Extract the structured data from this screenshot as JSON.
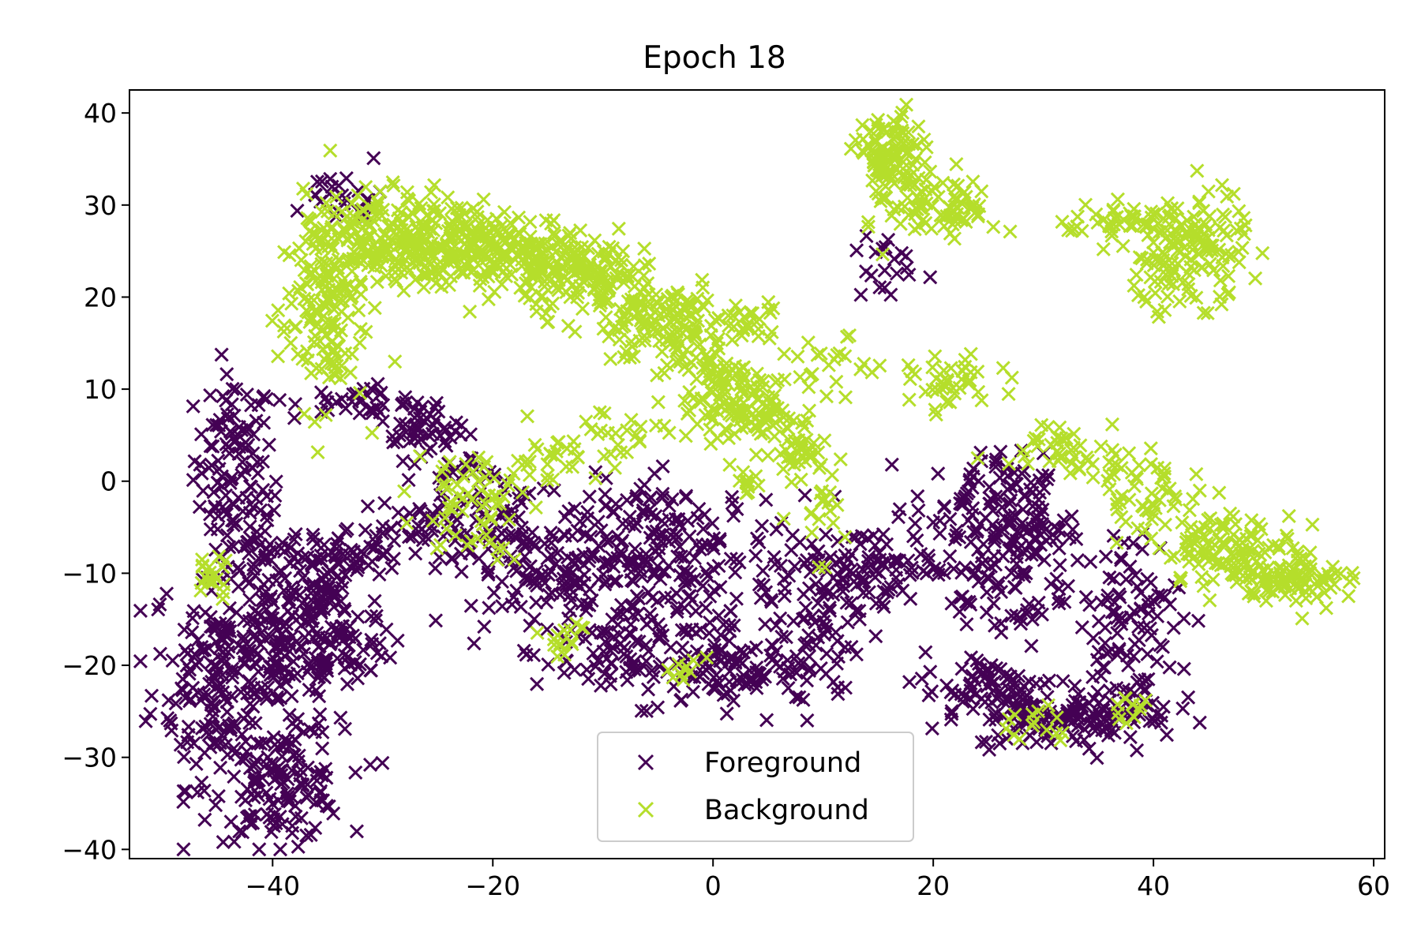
{
  "chart_data": {
    "type": "scatter",
    "title": "Epoch 18",
    "xlabel": "",
    "ylabel": "",
    "xlim": [
      -53,
      61
    ],
    "ylim": [
      -41,
      42.5
    ],
    "xticks": [
      -40,
      -20,
      0,
      20,
      40,
      60
    ],
    "yticks": [
      -40,
      -30,
      -20,
      -10,
      0,
      10,
      20,
      30,
      40
    ],
    "xtick_labels": [
      "−40",
      "−20",
      "0",
      "20",
      "40",
      "60"
    ],
    "ytick_labels": [
      "−40",
      "−30",
      "−20",
      "−10",
      "0",
      "10",
      "20",
      "30",
      "40"
    ],
    "grid": false,
    "legend_position": "bottom-center",
    "marker": "x",
    "series": [
      {
        "name": "Foreground",
        "color": "#440154",
        "clusters": [
          {
            "center": [
              -43.5,
              2.5
            ],
            "spread": [
              1.8,
              4.5
            ],
            "count": 90
          },
          {
            "center": [
              -42.5,
              -6.0
            ],
            "spread": [
              1.8,
              3.0
            ],
            "count": 40
          },
          {
            "center": [
              -45.0,
              -21.0
            ],
            "spread": [
              3.0,
              6.0
            ],
            "count": 160
          },
          {
            "center": [
              -39.0,
              -18.0
            ],
            "spread": [
              3.5,
              5.0
            ],
            "count": 170
          },
          {
            "center": [
              -39.5,
              -33.0
            ],
            "spread": [
              3.0,
              3.0
            ],
            "count": 130
          },
          {
            "center": [
              -35.0,
              -13.0
            ],
            "spread": [
              2.5,
              5.0
            ],
            "count": 80
          },
          {
            "center": [
              -33.0,
              -8.0
            ],
            "spread": [
              2.5,
              1.5
            ],
            "count": 40
          },
          {
            "center": [
              -33.0,
              -18.5
            ],
            "spread": [
              2.0,
              1.5
            ],
            "count": 30
          },
          {
            "center": [
              -27.0,
              -5.0
            ],
            "spread": [
              3.5,
              1.5
            ],
            "count": 40
          },
          {
            "center": [
              -20.0,
              -3.0
            ],
            "spread": [
              2.5,
              2.0
            ],
            "count": 30
          },
          {
            "center": [
              -14.0,
              -10.0
            ],
            "spread": [
              5.0,
              4.0
            ],
            "count": 180
          },
          {
            "center": [
              -3.5,
              -8.0
            ],
            "spread": [
              4.5,
              4.0
            ],
            "count": 160
          },
          {
            "center": [
              -6.0,
              -19.0
            ],
            "spread": [
              5.0,
              2.5
            ],
            "count": 80
          },
          {
            "center": [
              3.0,
              -21.0
            ],
            "spread": [
              5.0,
              2.0
            ],
            "count": 100
          },
          {
            "center": [
              10.0,
              -12.0
            ],
            "spread": [
              3.5,
              4.0
            ],
            "count": 100
          },
          {
            "center": [
              15.0,
              -9.0
            ],
            "spread": [
              4.0,
              2.0
            ],
            "count": 60
          },
          {
            "center": [
              24.0,
              -3.0
            ],
            "spread": [
              3.0,
              3.0
            ],
            "count": 90
          },
          {
            "center": [
              28.5,
              -5.0
            ],
            "spread": [
              2.0,
              3.0
            ],
            "count": 60
          },
          {
            "center": [
              27.0,
              -12.0
            ],
            "spread": [
              2.5,
              3.5
            ],
            "count": 60
          },
          {
            "center": [
              25.0,
              -22.5
            ],
            "spread": [
              3.0,
              2.0
            ],
            "count": 70
          },
          {
            "center": [
              30.0,
              -26.0
            ],
            "spread": [
              3.0,
              1.5
            ],
            "count": 70
          },
          {
            "center": [
              36.0,
              -25.0
            ],
            "spread": [
              3.0,
              1.5
            ],
            "count": 70
          },
          {
            "center": [
              37.5,
              -15.0
            ],
            "spread": [
              2.5,
              5.0
            ],
            "count": 100
          },
          {
            "center": [
              -34.0,
              31.0
            ],
            "spread": [
              2.0,
              1.5
            ],
            "count": 25
          },
          {
            "center": [
              -32.0,
              8.5
            ],
            "spread": [
              3.0,
              1.0
            ],
            "count": 30
          },
          {
            "center": [
              -27.0,
              6.0
            ],
            "spread": [
              2.0,
              1.5
            ],
            "count": 40
          },
          {
            "center": [
              -24.0,
              2.0
            ],
            "spread": [
              2.0,
              2.0
            ],
            "count": 30
          },
          {
            "center": [
              15.5,
              23.0
            ],
            "spread": [
              1.5,
              2.0
            ],
            "count": 20
          }
        ]
      },
      {
        "name": "Background",
        "color": "#b5de2b",
        "clusters": [
          {
            "center": [
              -35.5,
              18.0
            ],
            "spread": [
              2.0,
              5.0
            ],
            "count": 130
          },
          {
            "center": [
              -31.0,
              26.5
            ],
            "spread": [
              3.0,
              2.5
            ],
            "count": 170
          },
          {
            "center": [
              -24.0,
              26.0
            ],
            "spread": [
              3.0,
              2.5
            ],
            "count": 160
          },
          {
            "center": [
              -17.0,
              24.5
            ],
            "spread": [
              3.0,
              2.0
            ],
            "count": 130
          },
          {
            "center": [
              -11.0,
              22.0
            ],
            "spread": [
              3.0,
              2.0
            ],
            "count": 110
          },
          {
            "center": [
              -5.0,
              17.0
            ],
            "spread": [
              3.0,
              2.5
            ],
            "count": 130
          },
          {
            "center": [
              0.5,
              12.0
            ],
            "spread": [
              2.0,
              3.0
            ],
            "count": 90
          },
          {
            "center": [
              4.0,
              7.5
            ],
            "spread": [
              2.0,
              2.0
            ],
            "count": 70
          },
          {
            "center": [
              7.5,
              3.5
            ],
            "spread": [
              1.5,
              1.5
            ],
            "count": 35
          },
          {
            "center": [
              16.0,
              35.0
            ],
            "spread": [
              1.5,
              2.5
            ],
            "count": 100
          },
          {
            "center": [
              21.0,
              30.0
            ],
            "spread": [
              2.5,
              2.0
            ],
            "count": 80
          },
          {
            "center": [
              36.5,
              28.0
            ],
            "spread": [
              2.5,
              1.0
            ],
            "count": 40
          },
          {
            "center": [
              43.5,
              25.5
            ],
            "spread": [
              2.5,
              3.0
            ],
            "count": 130
          },
          {
            "center": [
              40.5,
              21.0
            ],
            "spread": [
              1.0,
              2.0
            ],
            "count": 20
          },
          {
            "center": [
              22.0,
              10.5
            ],
            "spread": [
              2.0,
              1.5
            ],
            "count": 40
          },
          {
            "center": [
              11.0,
              12.5
            ],
            "spread": [
              2.0,
              1.5
            ],
            "count": 20
          },
          {
            "center": [
              4.0,
              17.5
            ],
            "spread": [
              1.0,
              1.0
            ],
            "count": 15
          },
          {
            "center": [
              33.0,
              3.5
            ],
            "spread": [
              3.5,
              1.5
            ],
            "count": 50
          },
          {
            "center": [
              40.0,
              -2.0
            ],
            "spread": [
              2.5,
              2.0
            ],
            "count": 50
          },
          {
            "center": [
              47.0,
              -7.5
            ],
            "spread": [
              3.0,
              2.0
            ],
            "count": 110
          },
          {
            "center": [
              53.0,
              -10.5
            ],
            "spread": [
              2.5,
              1.5
            ],
            "count": 80
          },
          {
            "center": [
              -45.5,
              -10.5
            ],
            "spread": [
              0.8,
              1.2
            ],
            "count": 20
          },
          {
            "center": [
              -22.0,
              -2.0
            ],
            "spread": [
              2.5,
              3.0
            ],
            "count": 60
          },
          {
            "center": [
              -15.0,
              2.5
            ],
            "spread": [
              1.5,
              1.5
            ],
            "count": 25
          },
          {
            "center": [
              -9.5,
              4.5
            ],
            "spread": [
              2.5,
              2.0
            ],
            "count": 25
          },
          {
            "center": [
              -13.0,
              -17.0
            ],
            "spread": [
              1.5,
              1.0
            ],
            "count": 15
          },
          {
            "center": [
              -3.0,
              -20.5
            ],
            "spread": [
              1.0,
              1.0
            ],
            "count": 10
          },
          {
            "center": [
              29.0,
              -26.5
            ],
            "spread": [
              2.0,
              1.0
            ],
            "count": 15
          },
          {
            "center": [
              38.0,
              -24.5
            ],
            "spread": [
              1.0,
              1.0
            ],
            "count": 12
          },
          {
            "center": [
              9.0,
              -3.5
            ],
            "spread": [
              1.5,
              2.5
            ],
            "count": 20
          },
          {
            "center": [
              3.0,
              -0.5
            ],
            "spread": [
              1.0,
              0.8
            ],
            "count": 10
          }
        ]
      }
    ]
  }
}
